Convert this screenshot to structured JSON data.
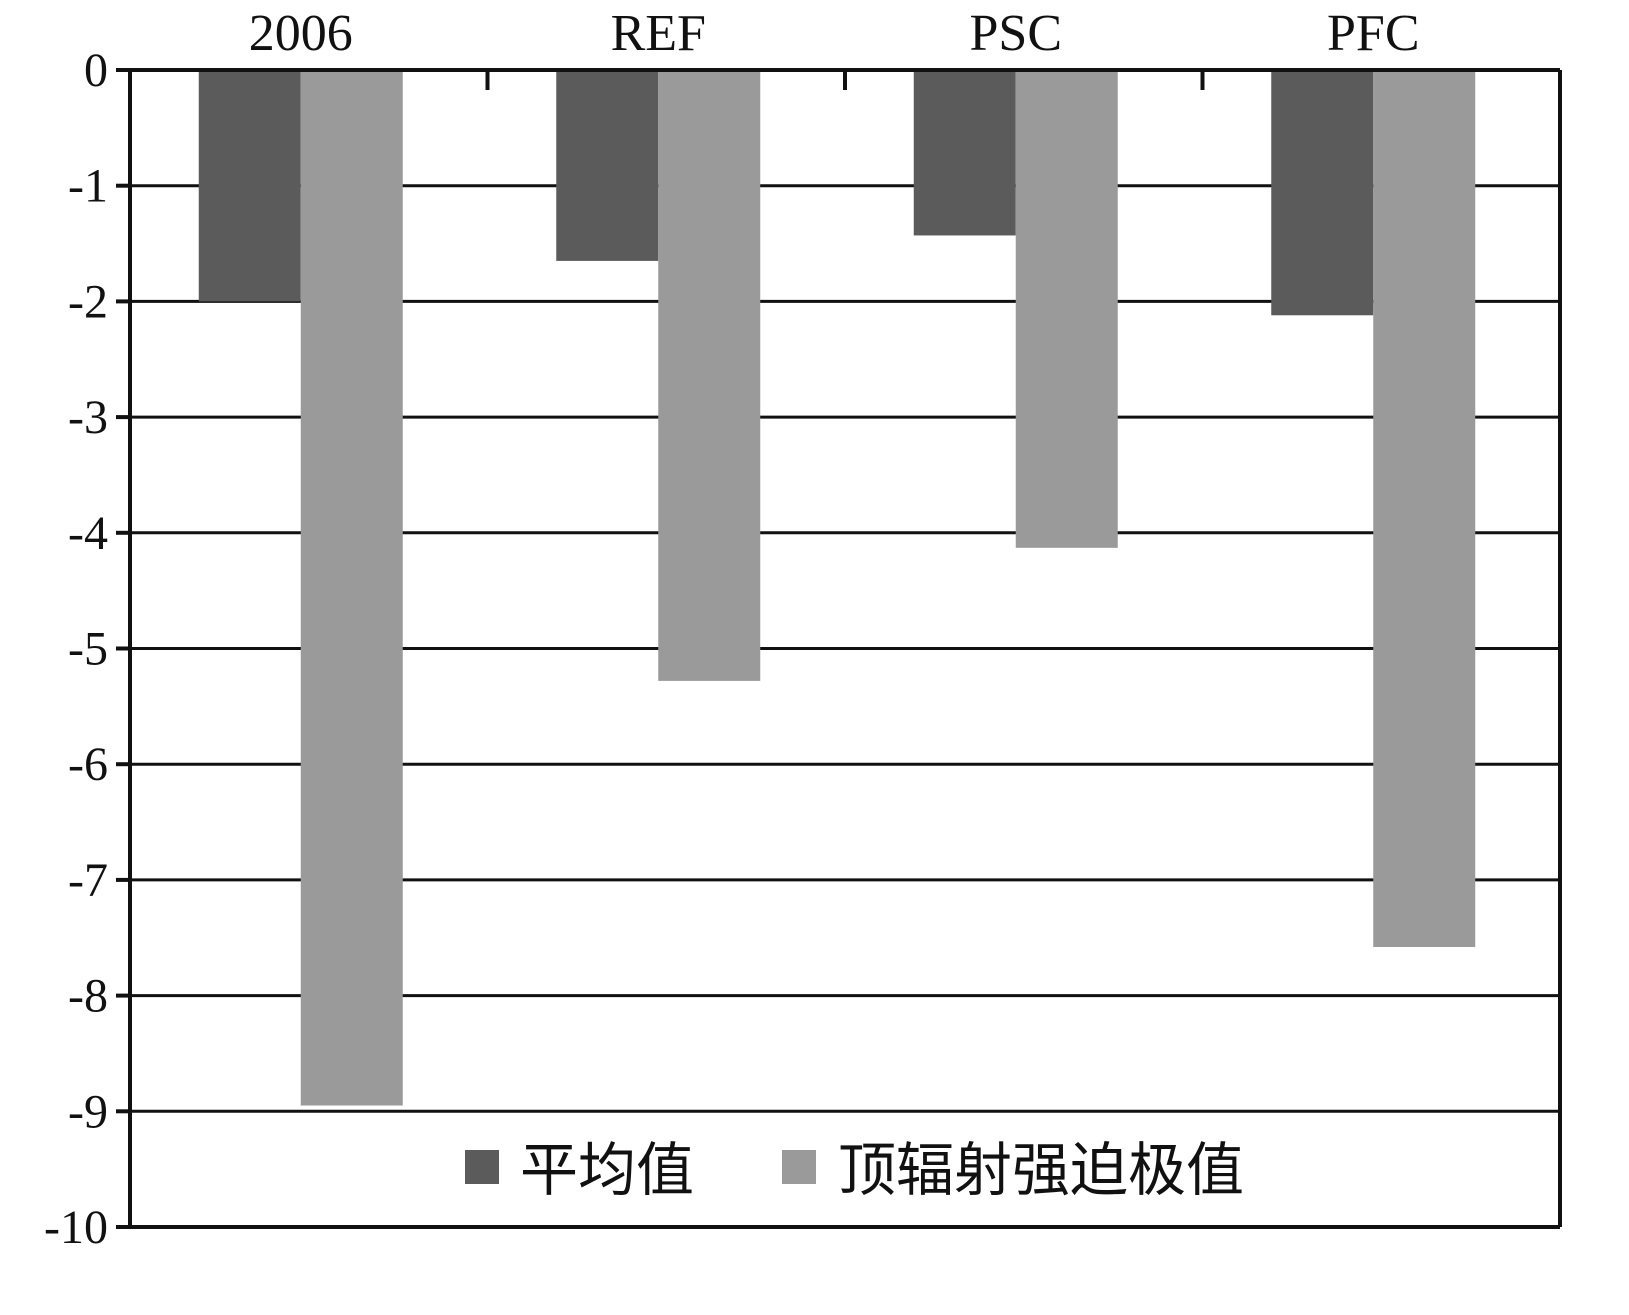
{
  "chart_data": {
    "type": "bar",
    "categories": [
      "2006",
      "REF",
      "PSC",
      "PFC"
    ],
    "series": [
      {
        "name": "平均值",
        "values": [
          -2.0,
          -1.65,
          -1.43,
          -2.12
        ],
        "color": "#5b5b5b"
      },
      {
        "name": "顶辐射强迫极值",
        "values": [
          -8.95,
          -5.28,
          -4.13,
          -7.58
        ],
        "color": "#9a9a9a"
      }
    ],
    "y_ticks": [
      "0",
      "-1",
      "-2",
      "-3",
      "-4",
      "-5",
      "-6",
      "-7",
      "-8",
      "-9",
      "-10"
    ],
    "ylim": [
      -10,
      0
    ],
    "x_axis_position": "top",
    "grid": true,
    "legend_position": "bottom-center",
    "title": "",
    "xlabel": "",
    "ylabel": ""
  }
}
